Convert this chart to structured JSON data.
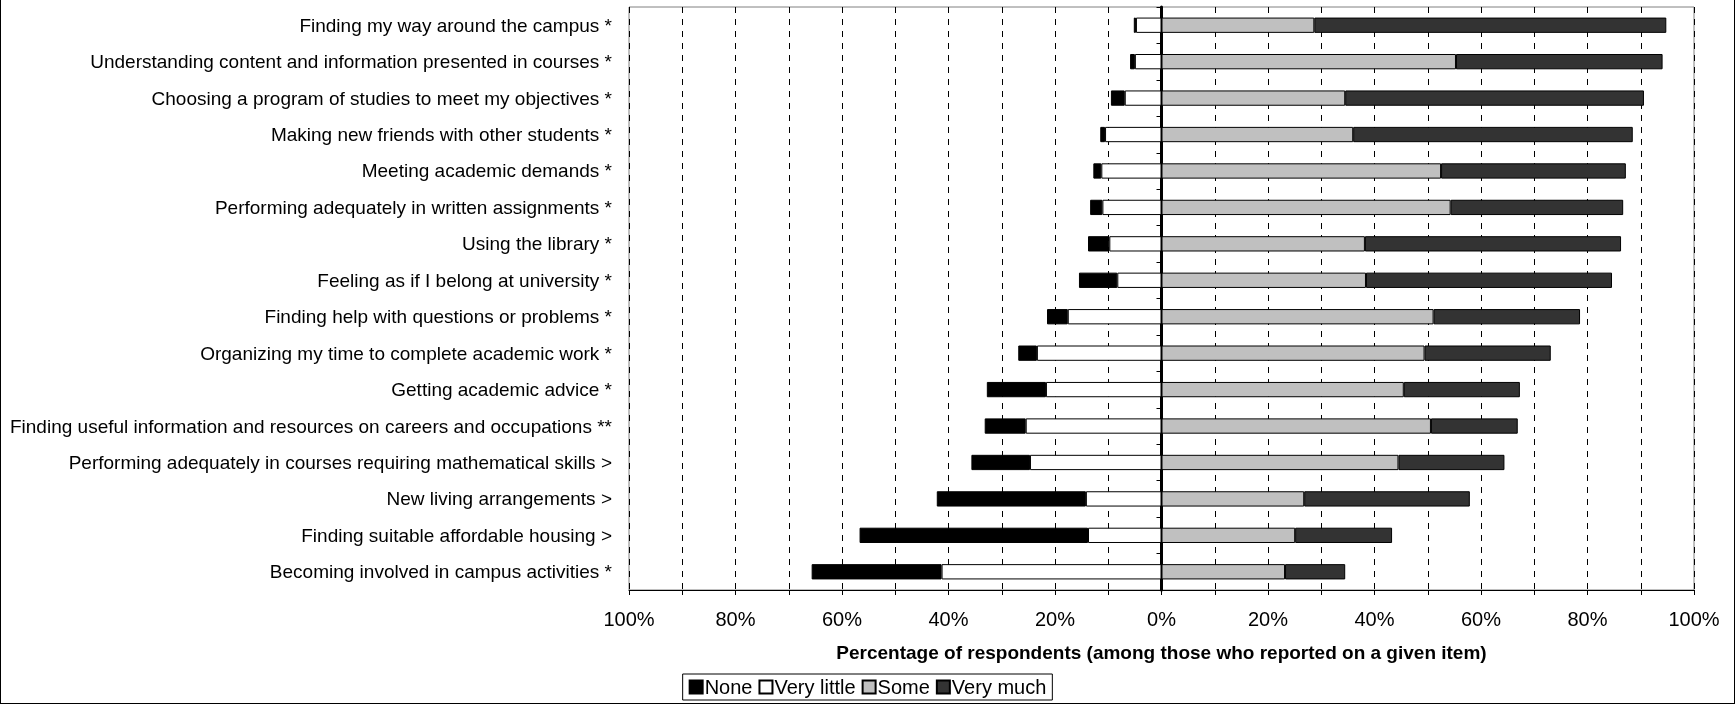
{
  "chart_data": {
    "type": "bar",
    "orientation": "horizontal",
    "stacked": true,
    "xlabel": "Percentage of respondents (among those who reported on a given item)",
    "categories": [
      "Finding my way around the campus *",
      "Understanding content and information presented in courses *",
      "Choosing a program of studies to meet my objectives *",
      "Making new friends with other students *",
      "Meeting academic demands *",
      "Performing adequately in written assignments *",
      "Using the library *",
      "Feeling as if I belong at university *",
      "Finding help with questions or problems *",
      "Organizing my time to complete academic work *",
      "Getting academic advice *",
      "Finding useful information and resources on careers and occupations **",
      "Performing adequately in courses requiring mathematical skills >",
      "New living arrangements >",
      "Finding suitable affordable housing >",
      "Becoming involved in campus activities *"
    ],
    "series": [
      {
        "name": "Very little",
        "color": "#ffffff",
        "values": [
          -4.8,
          -5.0,
          -6.9,
          -10.6,
          -11.3,
          -11.1,
          -9.8,
          -8.3,
          -17.6,
          -23.4,
          -21.7,
          -25.5,
          -24.7,
          -14.2,
          -13.8,
          -41.3
        ]
      },
      {
        "name": "None",
        "color": "#000000",
        "values": [
          -0.4,
          -0.9,
          -2.6,
          -0.9,
          -1.5,
          -2.3,
          -4.0,
          -7.2,
          -3.9,
          -3.5,
          -11.1,
          -7.7,
          -11.0,
          -28.0,
          -42.9,
          -24.4
        ]
      },
      {
        "name": "Some",
        "color": "#c0c0c0",
        "values": [
          28.7,
          55.3,
          34.5,
          36.0,
          52.5,
          54.3,
          38.2,
          38.4,
          51.1,
          49.4,
          45.5,
          50.6,
          44.5,
          26.8,
          25.1,
          23.2
        ]
      },
      {
        "name": "Very much",
        "color": "#333333",
        "values": [
          66.1,
          38.8,
          56.1,
          52.5,
          34.7,
          32.4,
          48.1,
          46.2,
          27.5,
          23.7,
          21.8,
          16.3,
          19.9,
          31.1,
          18.2,
          11.3
        ]
      }
    ],
    "xlim": [
      -100,
      100
    ],
    "xticks": [
      {
        "value": -100,
        "label": "100%"
      },
      {
        "value": -90,
        "label": null
      },
      {
        "value": -80,
        "label": "80%"
      },
      {
        "value": -70,
        "label": null
      },
      {
        "value": -60,
        "label": "60%"
      },
      {
        "value": -50,
        "label": null
      },
      {
        "value": -40,
        "label": "40%"
      },
      {
        "value": -30,
        "label": null
      },
      {
        "value": -20,
        "label": "20%"
      },
      {
        "value": -10,
        "label": null
      },
      {
        "value": 0,
        "label": "0%"
      },
      {
        "value": 10,
        "label": null
      },
      {
        "value": 20,
        "label": "20%"
      },
      {
        "value": 30,
        "label": null
      },
      {
        "value": 40,
        "label": "40%"
      },
      {
        "value": 50,
        "label": null
      },
      {
        "value": 60,
        "label": "60%"
      },
      {
        "value": 70,
        "label": null
      },
      {
        "value": 80,
        "label": "80%"
      },
      {
        "value": 90,
        "label": null
      },
      {
        "value": 100,
        "label": "100%"
      }
    ],
    "grid": "x",
    "legend": "bottom"
  }
}
